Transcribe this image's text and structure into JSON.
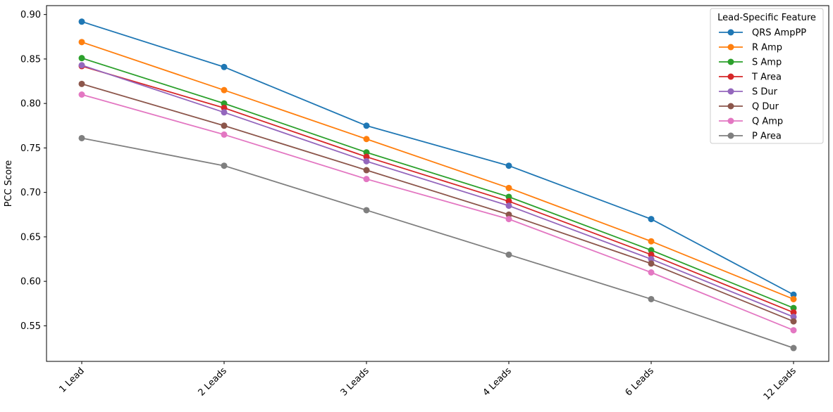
{
  "chart_data": {
    "type": "line",
    "title": "",
    "xlabel": "",
    "ylabel": "PCC Score",
    "categories": [
      "1 Lead",
      "2 Leads",
      "3 Leads",
      "4 Leads",
      "6 Leads",
      "12 Leads"
    ],
    "ylim": [
      0.51,
      0.91
    ],
    "yticks": [
      "0.55",
      "0.60",
      "0.65",
      "0.70",
      "0.75",
      "0.80",
      "0.85",
      "0.90"
    ],
    "grid": false,
    "legend": {
      "title": "Lead-Specific Feature",
      "position": "top-right"
    },
    "series": [
      {
        "name": "QRS AmpPP",
        "color": "#1f77b4",
        "values": [
          0.892,
          0.841,
          0.775,
          0.73,
          0.67,
          0.585
        ]
      },
      {
        "name": "R Amp",
        "color": "#ff7f0e",
        "values": [
          0.869,
          0.815,
          0.76,
          0.705,
          0.645,
          0.58
        ]
      },
      {
        "name": "S Amp",
        "color": "#2ca02c",
        "values": [
          0.851,
          0.8,
          0.745,
          0.695,
          0.635,
          0.57
        ]
      },
      {
        "name": "T Area",
        "color": "#d62728",
        "values": [
          0.842,
          0.795,
          0.74,
          0.69,
          0.63,
          0.565
        ]
      },
      {
        "name": "S Dur",
        "color": "#9467bd",
        "values": [
          0.843,
          0.79,
          0.735,
          0.685,
          0.625,
          0.56
        ]
      },
      {
        "name": "Q Dur",
        "color": "#8c564b",
        "values": [
          0.822,
          0.775,
          0.725,
          0.675,
          0.62,
          0.555
        ]
      },
      {
        "name": "Q Amp",
        "color": "#e377c2",
        "values": [
          0.81,
          0.765,
          0.715,
          0.67,
          0.61,
          0.545
        ]
      },
      {
        "name": "P Area",
        "color": "#7f7f7f",
        "values": [
          0.761,
          0.73,
          0.68,
          0.63,
          0.58,
          0.525
        ]
      }
    ]
  }
}
